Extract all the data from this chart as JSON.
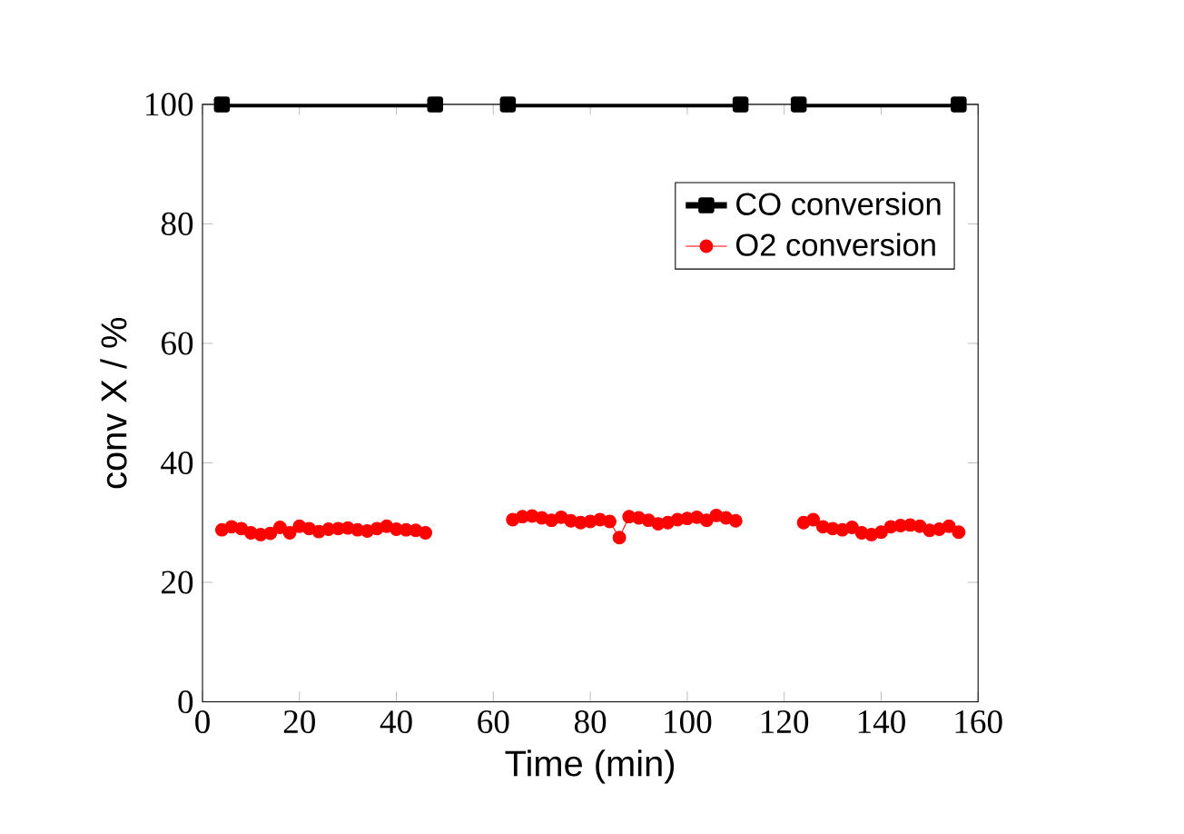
{
  "chart_data": {
    "type": "line",
    "xlabel": "Time (min)",
    "ylabel": "conv X / %",
    "xlim": [
      0,
      160
    ],
    "xticks": [
      0,
      20,
      40,
      60,
      80,
      100,
      120,
      140,
      160
    ],
    "ylim": [
      0,
      100
    ],
    "yticks": [
      0,
      20,
      40,
      60,
      80,
      100
    ],
    "grid": false,
    "legend": "top right",
    "series": [
      {
        "name": "CO  conversion",
        "marker": "square",
        "color": "#000000",
        "x": [
          4,
          48,
          55,
          63,
          111,
          117,
          123,
          156
        ],
        "values": [
          100,
          100,
          null,
          100,
          100,
          null,
          100,
          100
        ]
      },
      {
        "name": "O2 conversion",
        "marker": "circle",
        "color": "#ff0000",
        "x": [
          4,
          6,
          8,
          10,
          12,
          14,
          16,
          18,
          20,
          22,
          24,
          26,
          28,
          30,
          32,
          34,
          36,
          38,
          40,
          42,
          44,
          46,
          55,
          64,
          66,
          68,
          70,
          72,
          74,
          76,
          78,
          80,
          82,
          84,
          86,
          88,
          90,
          92,
          94,
          96,
          98,
          100,
          102,
          104,
          106,
          108,
          110,
          117,
          124,
          126,
          128,
          130,
          132,
          134,
          136,
          138,
          140,
          142,
          144,
          146,
          148,
          150,
          152,
          154,
          156
        ],
        "values": [
          28.8,
          29.3,
          29.0,
          28.3,
          28.0,
          28.2,
          29.2,
          28.3,
          29.4,
          29.0,
          28.5,
          28.9,
          29.0,
          29.1,
          28.8,
          28.6,
          29.0,
          29.4,
          28.9,
          28.8,
          28.7,
          28.3,
          null,
          30.5,
          31.0,
          31.1,
          30.8,
          30.4,
          30.9,
          30.3,
          30.0,
          30.2,
          30.5,
          30.2,
          27.5,
          31.0,
          30.8,
          30.4,
          29.8,
          30.0,
          30.5,
          30.7,
          30.9,
          30.4,
          31.2,
          30.8,
          30.3,
          null,
          30.0,
          30.5,
          29.3,
          29.0,
          28.8,
          29.2,
          28.3,
          28.0,
          28.4,
          29.3,
          29.5,
          29.6,
          29.4,
          28.7,
          28.9,
          29.4,
          28.4
        ]
      }
    ]
  }
}
